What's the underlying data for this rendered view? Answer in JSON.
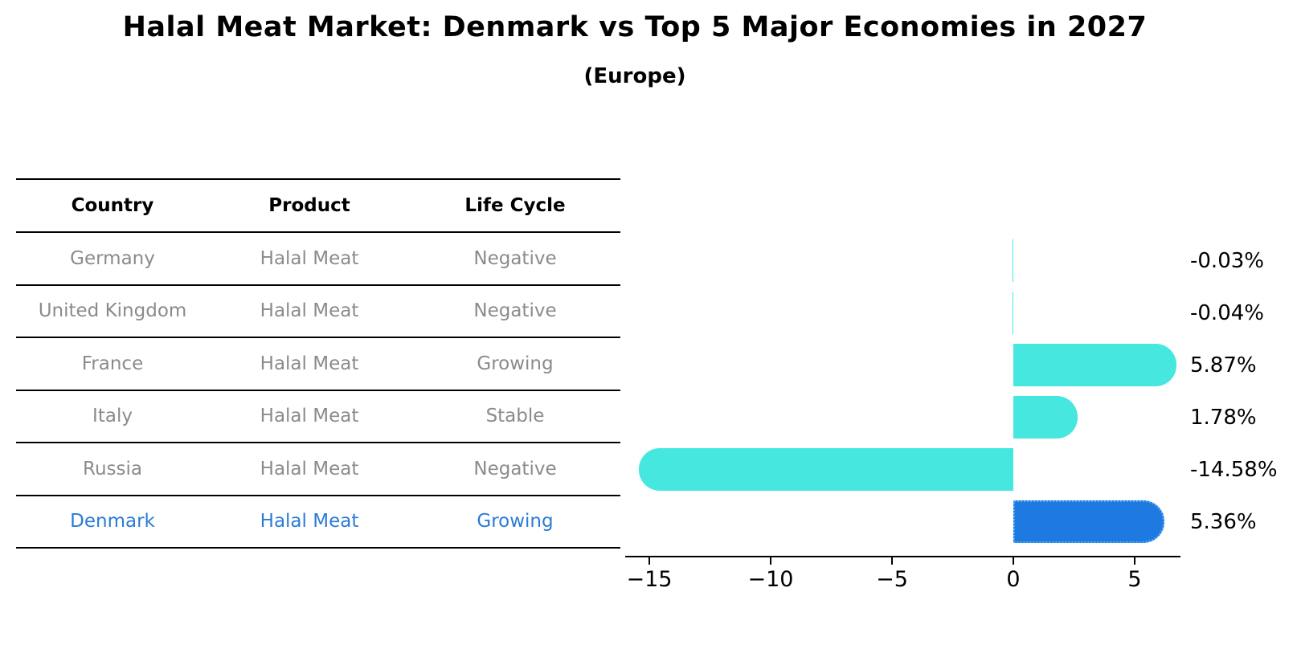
{
  "header": {
    "title": "Halal Meat Market: Denmark vs Top 5 Major Economies in 2027",
    "subtitle": "(Europe)"
  },
  "table": {
    "columns": [
      "Country",
      "Product",
      "Life Cycle"
    ],
    "rows": [
      {
        "country": "Germany",
        "product": "Halal Meat",
        "life_cycle": "Negative",
        "highlight": false
      },
      {
        "country": "United Kingdom",
        "product": "Halal Meat",
        "life_cycle": "Negative",
        "highlight": false
      },
      {
        "country": "France",
        "product": "Halal Meat",
        "life_cycle": "Growing",
        "highlight": false
      },
      {
        "country": "Italy",
        "product": "Halal Meat",
        "life_cycle": "Stable",
        "highlight": false
      },
      {
        "country": "Russia",
        "product": "Halal Meat",
        "life_cycle": "Negative",
        "highlight": false
      },
      {
        "country": "Denmark",
        "product": "Halal Meat",
        "life_cycle": "Growing",
        "highlight": true
      }
    ]
  },
  "chart_data": {
    "type": "bar",
    "orientation": "horizontal",
    "title": "Halal Meat Market: Denmark vs Top 5 Major Economies in 2027",
    "subtitle": "(Europe)",
    "categories": [
      "Germany",
      "United Kingdom",
      "France",
      "Italy",
      "Russia",
      "Denmark"
    ],
    "values": [
      -0.03,
      -0.04,
      5.87,
      1.78,
      -14.58,
      5.36
    ],
    "value_labels": [
      "-0.03%",
      "-0.04%",
      "5.87%",
      "1.78%",
      "-14.58%",
      "5.36%"
    ],
    "xlabel": "",
    "ylabel": "",
    "xlim": [
      -16,
      6.9
    ],
    "x_ticks": [
      -15,
      -10,
      -5,
      0,
      5
    ],
    "x_tick_labels": [
      "−15",
      "−10",
      "−5",
      "0",
      "5"
    ],
    "grid": false,
    "legend": "none",
    "bar_color": "#45e7df",
    "highlight_index": 5,
    "highlight_bar_color": "#1e7ae0",
    "highlight_border_color": "#5aabf5",
    "highlight_border_style": "dotted",
    "text_color": "#000000",
    "table_text_color": "#8b8b8b",
    "highlight_text_color": "#2b7cd6"
  }
}
